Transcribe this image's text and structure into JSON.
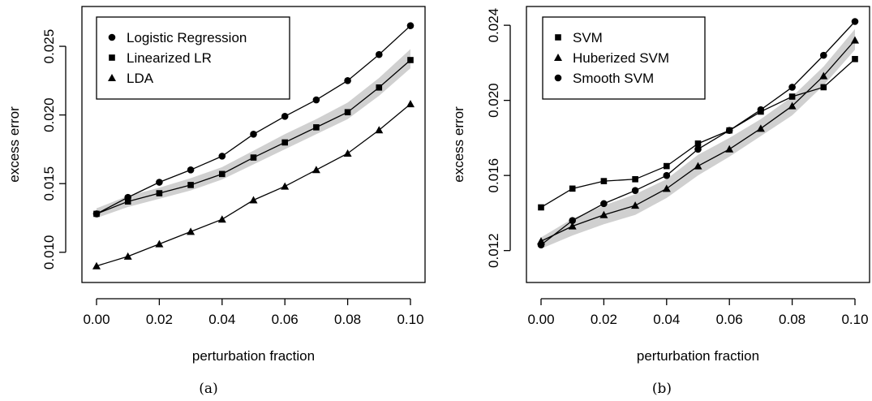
{
  "chart_data": [
    {
      "type": "line",
      "caption": "(a)",
      "xlabel": "perturbation fraction",
      "ylabel": "excess error",
      "xlim": [
        0.0,
        0.1
      ],
      "ylim": [
        0.0078,
        0.0279
      ],
      "xticks": [
        "0.00",
        "0.02",
        "0.04",
        "0.06",
        "0.08",
        "0.10"
      ],
      "yticks": [
        "0.010",
        "0.015",
        "0.020",
        "0.025"
      ],
      "legend_position": "top-left",
      "grid": false,
      "x": [
        0.0,
        0.01,
        0.02,
        0.03,
        0.04,
        0.05,
        0.06,
        0.07,
        0.08,
        0.09,
        0.1
      ],
      "series": [
        {
          "name": "Logistic Regression",
          "marker": "circle",
          "values": [
            0.0128,
            0.014,
            0.0151,
            0.016,
            0.017,
            0.0186,
            0.0199,
            0.0211,
            0.0225,
            0.0244,
            0.0265
          ]
        },
        {
          "name": "Linearized LR",
          "marker": "square",
          "values": [
            0.0128,
            0.0137,
            0.0143,
            0.0149,
            0.0157,
            0.0169,
            0.018,
            0.0191,
            0.0202,
            0.022,
            0.024
          ]
        },
        {
          "name": "LDA",
          "marker": "triangle",
          "values": [
            0.009,
            0.0097,
            0.0106,
            0.0115,
            0.0124,
            0.0138,
            0.0148,
            0.016,
            0.0172,
            0.0189,
            0.0208
          ]
        }
      ],
      "band": {
        "lower": [
          0.0125,
          0.0133,
          0.0139,
          0.0145,
          0.0153,
          0.0164,
          0.0175,
          0.0186,
          0.0197,
          0.0214,
          0.0234
        ],
        "upper": [
          0.0132,
          0.0141,
          0.0147,
          0.0154,
          0.0162,
          0.0174,
          0.0186,
          0.0197,
          0.0209,
          0.0227,
          0.0248
        ]
      }
    },
    {
      "type": "line",
      "caption": "(b)",
      "xlabel": "perturbation fraction",
      "ylabel": "excess error",
      "xlim": [
        0.0,
        0.1
      ],
      "ylim": [
        0.0103,
        0.025
      ],
      "xticks": [
        "0.00",
        "0.02",
        "0.04",
        "0.06",
        "0.08",
        "0.10"
      ],
      "yticks": [
        "0.012",
        "0.016",
        "0.020",
        "0.024"
      ],
      "legend_position": "top-left",
      "grid": false,
      "x": [
        0.0,
        0.01,
        0.02,
        0.03,
        0.04,
        0.05,
        0.06,
        0.07,
        0.08,
        0.09,
        0.1
      ],
      "series": [
        {
          "name": "SVM",
          "marker": "square",
          "values": [
            0.0143,
            0.0153,
            0.0157,
            0.0158,
            0.0165,
            0.0177,
            0.0184,
            0.0194,
            0.0202,
            0.0207,
            0.0222
          ]
        },
        {
          "name": "Huberized SVM",
          "marker": "triangle",
          "values": [
            0.0125,
            0.0133,
            0.0139,
            0.0144,
            0.0153,
            0.0165,
            0.0174,
            0.0185,
            0.0197,
            0.0213,
            0.0232
          ]
        },
        {
          "name": "Smooth SVM",
          "marker": "circle",
          "values": [
            0.0123,
            0.0136,
            0.0145,
            0.0152,
            0.016,
            0.0174,
            0.0184,
            0.0195,
            0.0207,
            0.0224,
            0.0242
          ]
        }
      ],
      "band": {
        "lower": [
          0.0121,
          0.0128,
          0.0134,
          0.0139,
          0.0148,
          0.016,
          0.017,
          0.0181,
          0.0192,
          0.0208,
          0.0227
        ],
        "upper": [
          0.0127,
          0.0137,
          0.0144,
          0.015,
          0.0158,
          0.0171,
          0.018,
          0.019,
          0.0202,
          0.0218,
          0.0238
        ]
      }
    }
  ]
}
